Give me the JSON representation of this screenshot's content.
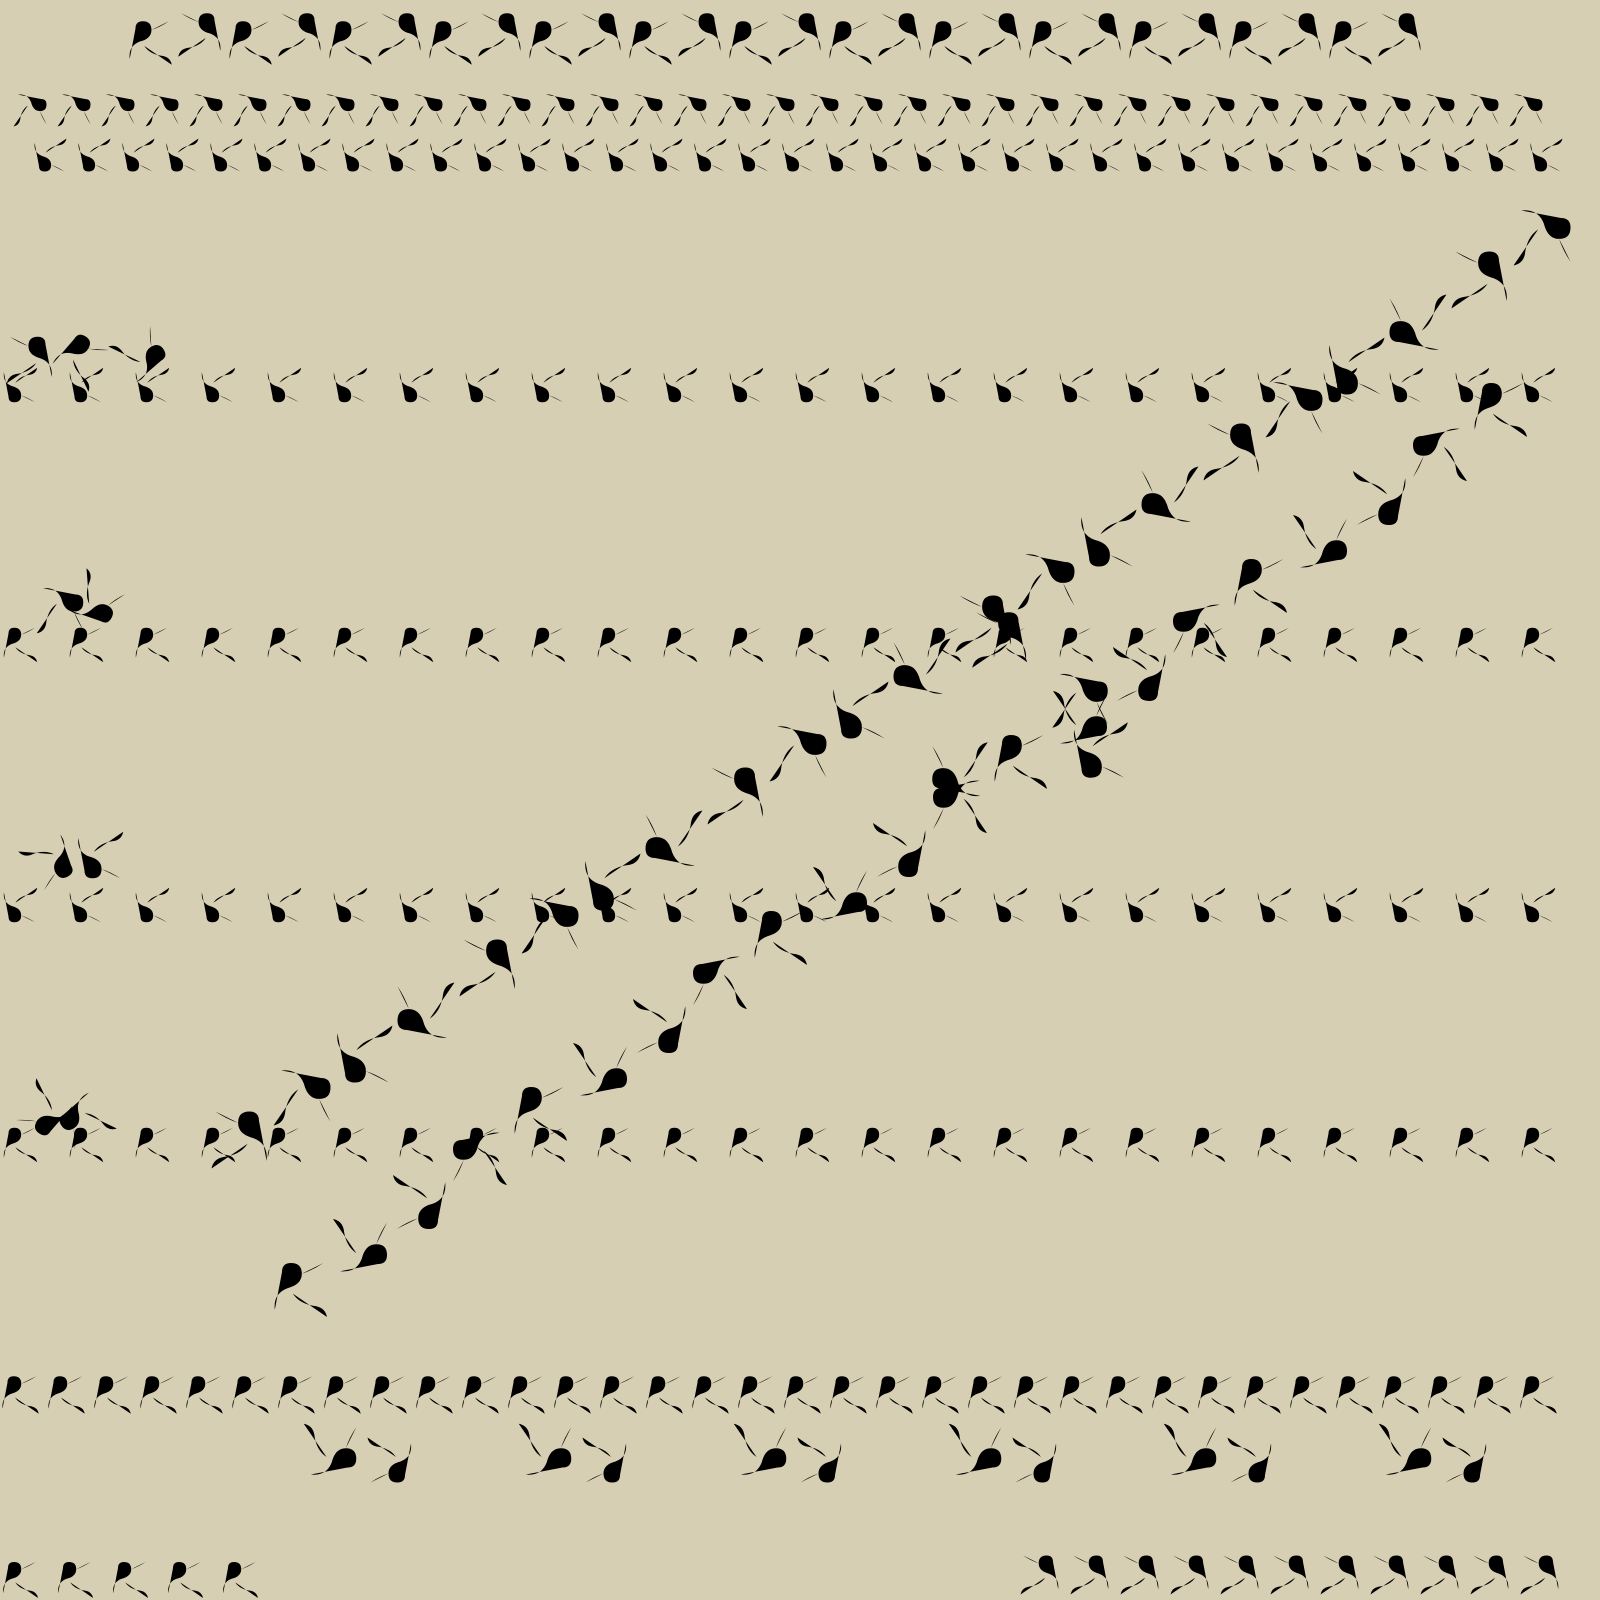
{
  "colors": {
    "background": "#d6cfb4",
    "ink_dark": "#1d1a26",
    "ink_red": "#a51820",
    "ink_blue": "#1d18b0",
    "ink_faint": "#b3ac92"
  },
  "motif": "swirl-glyph",
  "rows": [
    "top-dark-band",
    "top-dark-small-band",
    "left-dark-clusters",
    "faint-band-1",
    "faint-band-2",
    "faint-band-3",
    "faint-band-4",
    "diagonal-red-band",
    "diagonal-blue-band",
    "bottom-dark-band",
    "bottom-dark-partial-band"
  ]
}
